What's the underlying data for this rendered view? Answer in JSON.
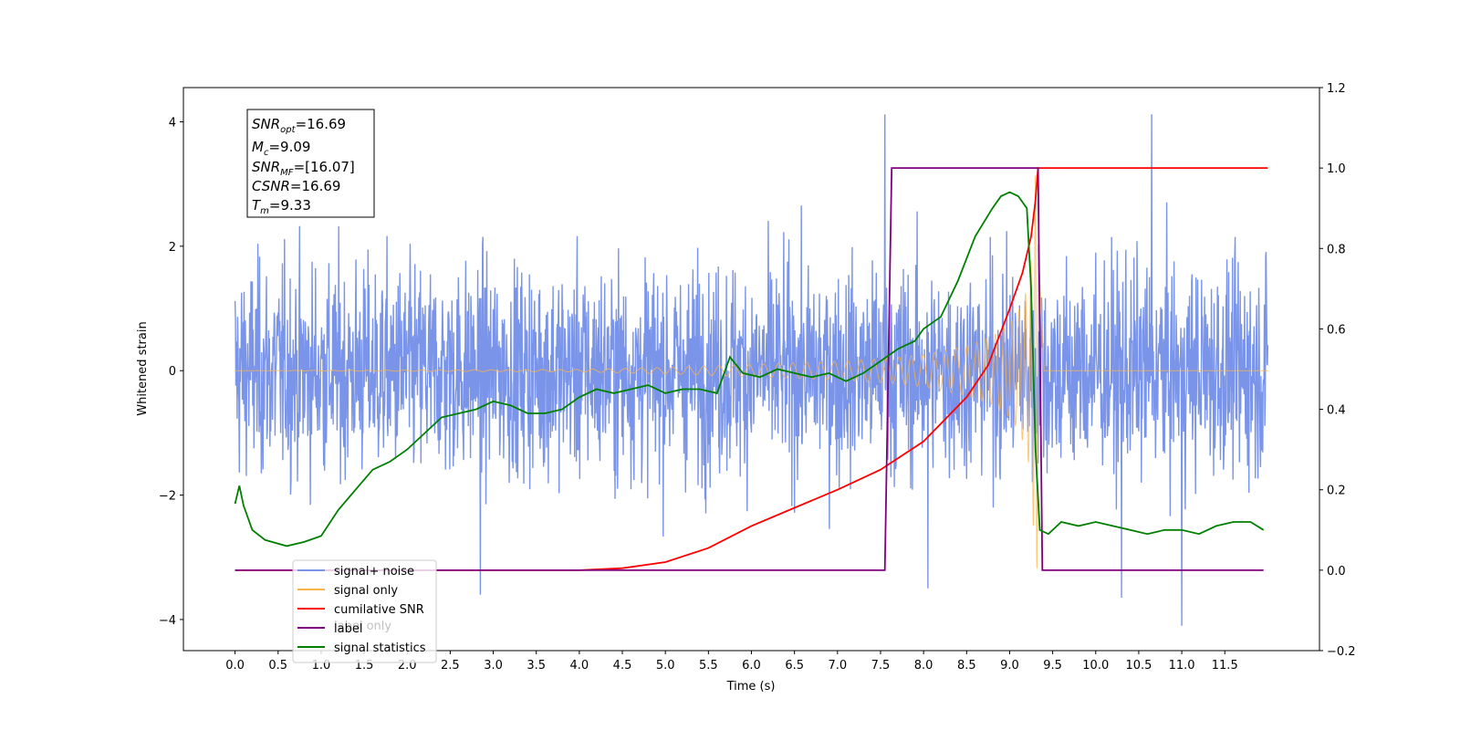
{
  "chart_data": {
    "type": "line",
    "xlabel": "Time (s)",
    "ylabel_left": "Whitened strain",
    "ylabel_right": "",
    "xlim": [
      -0.6,
      12.6
    ],
    "ylim_left": [
      -4.5,
      4.55
    ],
    "ylim_right": [
      -0.2,
      1.2
    ],
    "x_ticks": [
      "0.0",
      "0.5",
      "1.0",
      "1.5",
      "2.0",
      "2.5",
      "3.0",
      "3.5",
      "4.0",
      "4.5",
      "5.0",
      "5.5",
      "6.0",
      "6.5",
      "7.0",
      "7.5",
      "8.0",
      "8.5",
      "9.0",
      "9.5",
      "10.0",
      "10.5",
      "11.0",
      "11.5"
    ],
    "y_ticks_left": [
      "4",
      "2",
      "0",
      "−2",
      "−4"
    ],
    "y_ticks_right": [
      "1.2",
      "1.0",
      "0.8",
      "0.6",
      "0.4",
      "0.2",
      "0.0",
      "−0.2"
    ],
    "grid": false,
    "legend_position": "lower-left",
    "info_box": {
      "snr_opt": {
        "sym": "SNR",
        "sub": "opt",
        "value": "=16.69"
      },
      "mc": {
        "sym": "M",
        "sub": "c",
        "value": "=9.09"
      },
      "snr_mf": {
        "sym": "SNR",
        "sub": "MF",
        "value": "=[16.07]"
      },
      "csnr": {
        "sym": "CSNR",
        "sub": "",
        "value": "=16.69"
      },
      "tm": {
        "sym": "T",
        "sub": "m",
        "value": "=9.33"
      }
    },
    "series": [
      {
        "name": "signal+ noise",
        "color": "#7994e8",
        "axis": "left",
        "style": "dense noise, amplitude about ±2.5 with peaks near ±4",
        "x_range": [
          0.0,
          12.0
        ],
        "extreme_points": [
          {
            "x": 7.55,
            "y": 4.12
          },
          {
            "x": 10.65,
            "y": 4.12
          },
          {
            "x": 11.0,
            "y": -4.1
          },
          {
            "x": 2.85,
            "y": -3.6
          },
          {
            "x": 10.3,
            "y": -3.65
          },
          {
            "x": 8.05,
            "y": -3.5
          }
        ]
      },
      {
        "name": "signal only",
        "color": "#ffb347",
        "axis": "left",
        "style": "chirp whose envelope grows from 0 to about ±3.3 until the merger at 9.33 s, then flat at 0",
        "envelope": {
          "x": [
            0.0,
            4.0,
            5.0,
            6.0,
            7.0,
            7.5,
            8.0,
            8.5,
            8.8,
            9.0,
            9.1,
            9.2,
            9.25,
            9.3,
            9.33,
            9.4,
            12.0
          ],
          "y": [
            0.0,
            0.02,
            0.05,
            0.1,
            0.15,
            0.19,
            0.26,
            0.4,
            0.55,
            0.75,
            0.95,
            1.3,
            1.8,
            3.2,
            3.2,
            0.0,
            0.0
          ]
        }
      },
      {
        "name": "cumilative SNR",
        "color": "#ff0000",
        "axis": "right",
        "x": [
          0.0,
          4.0,
          4.5,
          5.0,
          5.5,
          6.0,
          6.5,
          7.0,
          7.5,
          8.0,
          8.5,
          8.75,
          9.0,
          9.15,
          9.25,
          9.3,
          9.33,
          12.0
        ],
        "y": [
          0.0,
          0.0,
          0.005,
          0.02,
          0.055,
          0.11,
          0.155,
          0.2,
          0.25,
          0.32,
          0.43,
          0.51,
          0.65,
          0.74,
          0.83,
          0.92,
          1.0,
          1.0
        ]
      },
      {
        "name": "label",
        "color": "#800080",
        "axis": "right",
        "x": [
          0.0,
          7.55,
          7.63,
          9.33,
          9.38,
          11.95
        ],
        "y": [
          0.0,
          0.0,
          1.0,
          1.0,
          0.0,
          0.0
        ]
      },
      {
        "name": "label only",
        "color": "#800080",
        "axis": "right",
        "hidden_behind_legend": true,
        "x": [],
        "y": []
      },
      {
        "name": "signal statistics",
        "color": "#008000",
        "axis": "right",
        "x": [
          0.0,
          0.05,
          0.1,
          0.2,
          0.35,
          0.6,
          0.8,
          1.0,
          1.2,
          1.4,
          1.6,
          1.8,
          2.0,
          2.2,
          2.4,
          2.6,
          2.8,
          3.0,
          3.2,
          3.4,
          3.6,
          3.8,
          4.0,
          4.2,
          4.4,
          4.6,
          4.8,
          5.0,
          5.2,
          5.4,
          5.6,
          5.75,
          5.9,
          6.1,
          6.3,
          6.5,
          6.7,
          6.9,
          7.1,
          7.3,
          7.5,
          7.7,
          7.9,
          8.0,
          8.2,
          8.4,
          8.6,
          8.8,
          8.9,
          9.0,
          9.1,
          9.2,
          9.25,
          9.3,
          9.35,
          9.45,
          9.6,
          9.8,
          10.0,
          10.2,
          10.4,
          10.6,
          10.8,
          11.0,
          11.2,
          11.4,
          11.6,
          11.8,
          11.95
        ],
        "y": [
          0.165,
          0.21,
          0.16,
          0.1,
          0.075,
          0.06,
          0.07,
          0.085,
          0.15,
          0.2,
          0.25,
          0.27,
          0.3,
          0.34,
          0.38,
          0.39,
          0.4,
          0.42,
          0.41,
          0.39,
          0.39,
          0.4,
          0.43,
          0.45,
          0.44,
          0.45,
          0.46,
          0.44,
          0.45,
          0.45,
          0.44,
          0.53,
          0.49,
          0.48,
          0.5,
          0.49,
          0.48,
          0.49,
          0.47,
          0.49,
          0.52,
          0.55,
          0.57,
          0.6,
          0.63,
          0.72,
          0.83,
          0.9,
          0.93,
          0.94,
          0.93,
          0.9,
          0.7,
          0.3,
          0.1,
          0.09,
          0.12,
          0.11,
          0.12,
          0.11,
          0.1,
          0.09,
          0.1,
          0.1,
          0.09,
          0.11,
          0.12,
          0.12,
          0.1
        ]
      }
    ]
  }
}
